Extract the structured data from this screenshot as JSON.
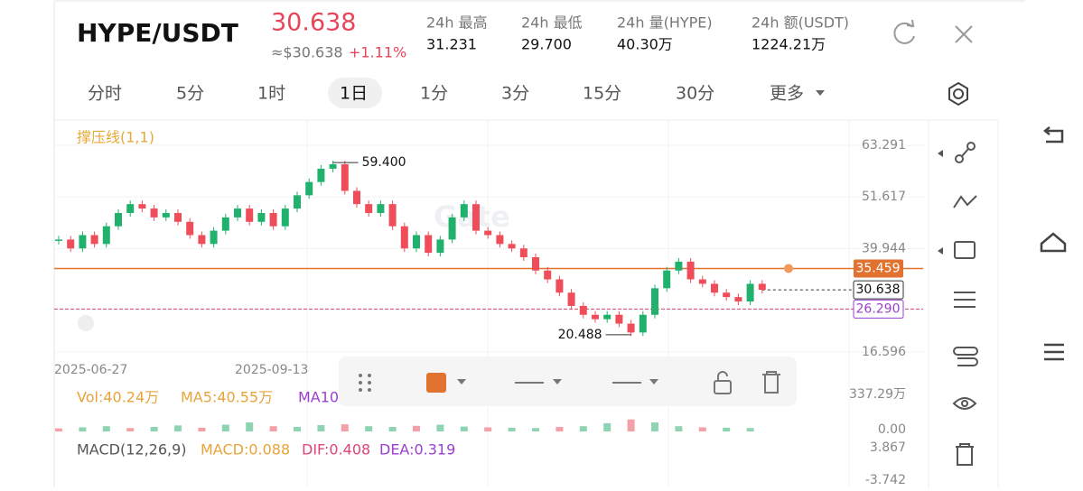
{
  "header": {
    "pair": "HYPE/USDT",
    "price": "30.638",
    "approx": "≈$30.638",
    "change": "+1.11%",
    "stats": [
      {
        "label": "24h  最高",
        "value": "31.231"
      },
      {
        "label": "24h  最低",
        "value": "29.700"
      },
      {
        "label": "24h  量(HYPE)",
        "value": "40.30万"
      },
      {
        "label": "24h  额(USDT)",
        "value": "1224.21万"
      }
    ]
  },
  "tabs": [
    "分时",
    "5分",
    "1时",
    "1日",
    "1分",
    "3分",
    "15分",
    "30分",
    "更多"
  ],
  "chart": {
    "type": "candlestick",
    "indicator": "撑压线(1,1)",
    "watermark": "Gate",
    "ylim": [
      14.55,
      68.59
    ],
    "yticks": [
      63.291,
      51.617,
      39.944,
      16.596
    ],
    "dates": [
      "2025-06-27",
      "2025-09-13"
    ],
    "high_label": {
      "value": 59.4,
      "label": "59.400"
    },
    "low_label": 20.488,
    "resistance": 35.459,
    "current": 30.638,
    "support": {
      "value": 26.29,
      "label": "26.290"
    },
    "closes": [
      42,
      40,
      43,
      41,
      45,
      48,
      50,
      49,
      47,
      48,
      46,
      43,
      41,
      44,
      47,
      49,
      46,
      48,
      45,
      49,
      52,
      55,
      58,
      59,
      53,
      50,
      48,
      50,
      45,
      40,
      43,
      39,
      42,
      47,
      50,
      44,
      43,
      41,
      40,
      38,
      35,
      33,
      30,
      27,
      25,
      24,
      25,
      23,
      21,
      25,
      31,
      35,
      37,
      33,
      32,
      30,
      29,
      28,
      32,
      30.638
    ],
    "up_color": "#20b26c",
    "down_color": "#ef4d5a"
  },
  "volume": {
    "labels": [
      "Vol:40.24万",
      "MA5:40.55万",
      "MA10"
    ],
    "ylim": [
      0,
      337.29
    ],
    "yticks": [
      {
        "value": 337.29,
        "label": "337.29万"
      },
      {
        "value": 0,
        "label": "0.00"
      }
    ],
    "values": [
      40,
      55,
      70,
      45,
      60,
      80,
      50,
      90,
      120,
      70,
      60,
      85,
      95,
      70,
      60,
      75,
      90,
      65,
      55,
      50,
      45,
      60,
      70,
      110,
      160,
      120,
      70,
      55,
      50,
      45
    ]
  },
  "macd": {
    "labels": [
      "MACD(12,26,9)",
      "MACD:0.088",
      "DIF:0.408",
      "DEA:0.319"
    ],
    "yticks": [
      3.867,
      -3.742
    ]
  }
}
